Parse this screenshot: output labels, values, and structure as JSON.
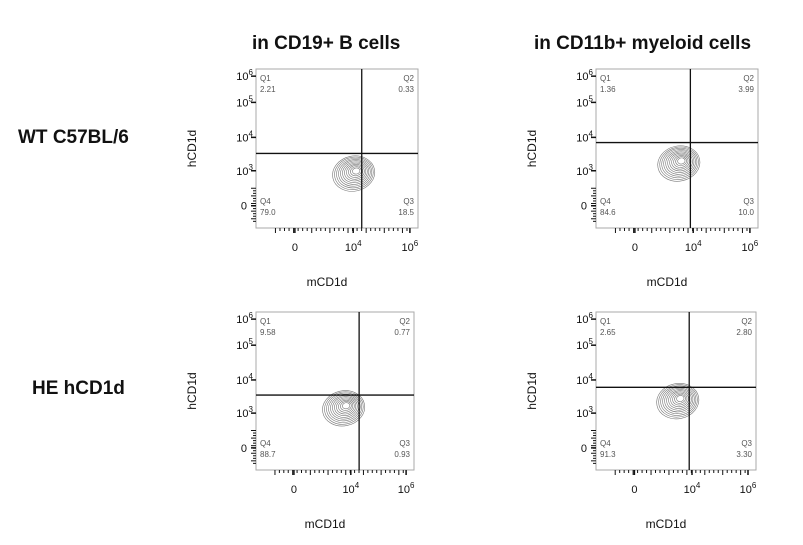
{
  "column_titles": [
    "in CD19+ B cells",
    "in CD11b+ myeloid cells"
  ],
  "row_labels": [
    "WT C57BL/6",
    "HE hCD1d"
  ],
  "chart_data": {
    "type": "contour",
    "xlabel": "mCD1d",
    "ylabel": "hCD1d",
    "x_ticks": [
      {
        "v": 0,
        "label": "0"
      },
      {
        "v": 10000,
        "label": "10",
        "exp": "4"
      },
      {
        "v": 1000000,
        "label": "10",
        "exp": "6"
      }
    ],
    "y_ticks": [
      {
        "v": 0,
        "label": "0"
      },
      {
        "v": 1000,
        "label": "10",
        "exp": "3"
      },
      {
        "v": 10000,
        "label": "10",
        "exp": "4"
      },
      {
        "v": 100000,
        "label": "10",
        "exp": "5"
      },
      {
        "v": 1000000,
        "label": "10",
        "exp": "6"
      }
    ],
    "panels": [
      {
        "row": "WT C57BL/6",
        "column": "in CD19+ B cells",
        "gate_x": 20000,
        "gate_y": 3300,
        "center": [
          13000,
          1000
        ],
        "quadrants": {
          "Q1": "2.21",
          "Q2": "0.33",
          "Q3": "18.5",
          "Q4": "79.0"
        }
      },
      {
        "row": "WT C57BL/6",
        "column": "in CD11b+ myeloid cells",
        "gate_x": 8000,
        "gate_y": 7000,
        "center": [
          4000,
          2000
        ],
        "quadrants": {
          "Q1": "1.36",
          "Q2": "3.99",
          "Q3": "10.0",
          "Q4": "84.6"
        }
      },
      {
        "row": "HE hCD1d",
        "column": "in CD19+ B cells",
        "gate_x": 20000,
        "gate_y": 3500,
        "center": [
          7000,
          1700
        ],
        "quadrants": {
          "Q1": "9.58",
          "Q2": "0.77",
          "Q3": "0.93",
          "Q4": "88.7"
        }
      },
      {
        "row": "HE hCD1d",
        "column": "in CD11b+ myeloid cells",
        "gate_x": 8000,
        "gate_y": 6000,
        "center": [
          4000,
          2800
        ],
        "quadrants": {
          "Q1": "2.65",
          "Q2": "2.80",
          "Q3": "3.30",
          "Q4": "91.3"
        }
      }
    ]
  }
}
